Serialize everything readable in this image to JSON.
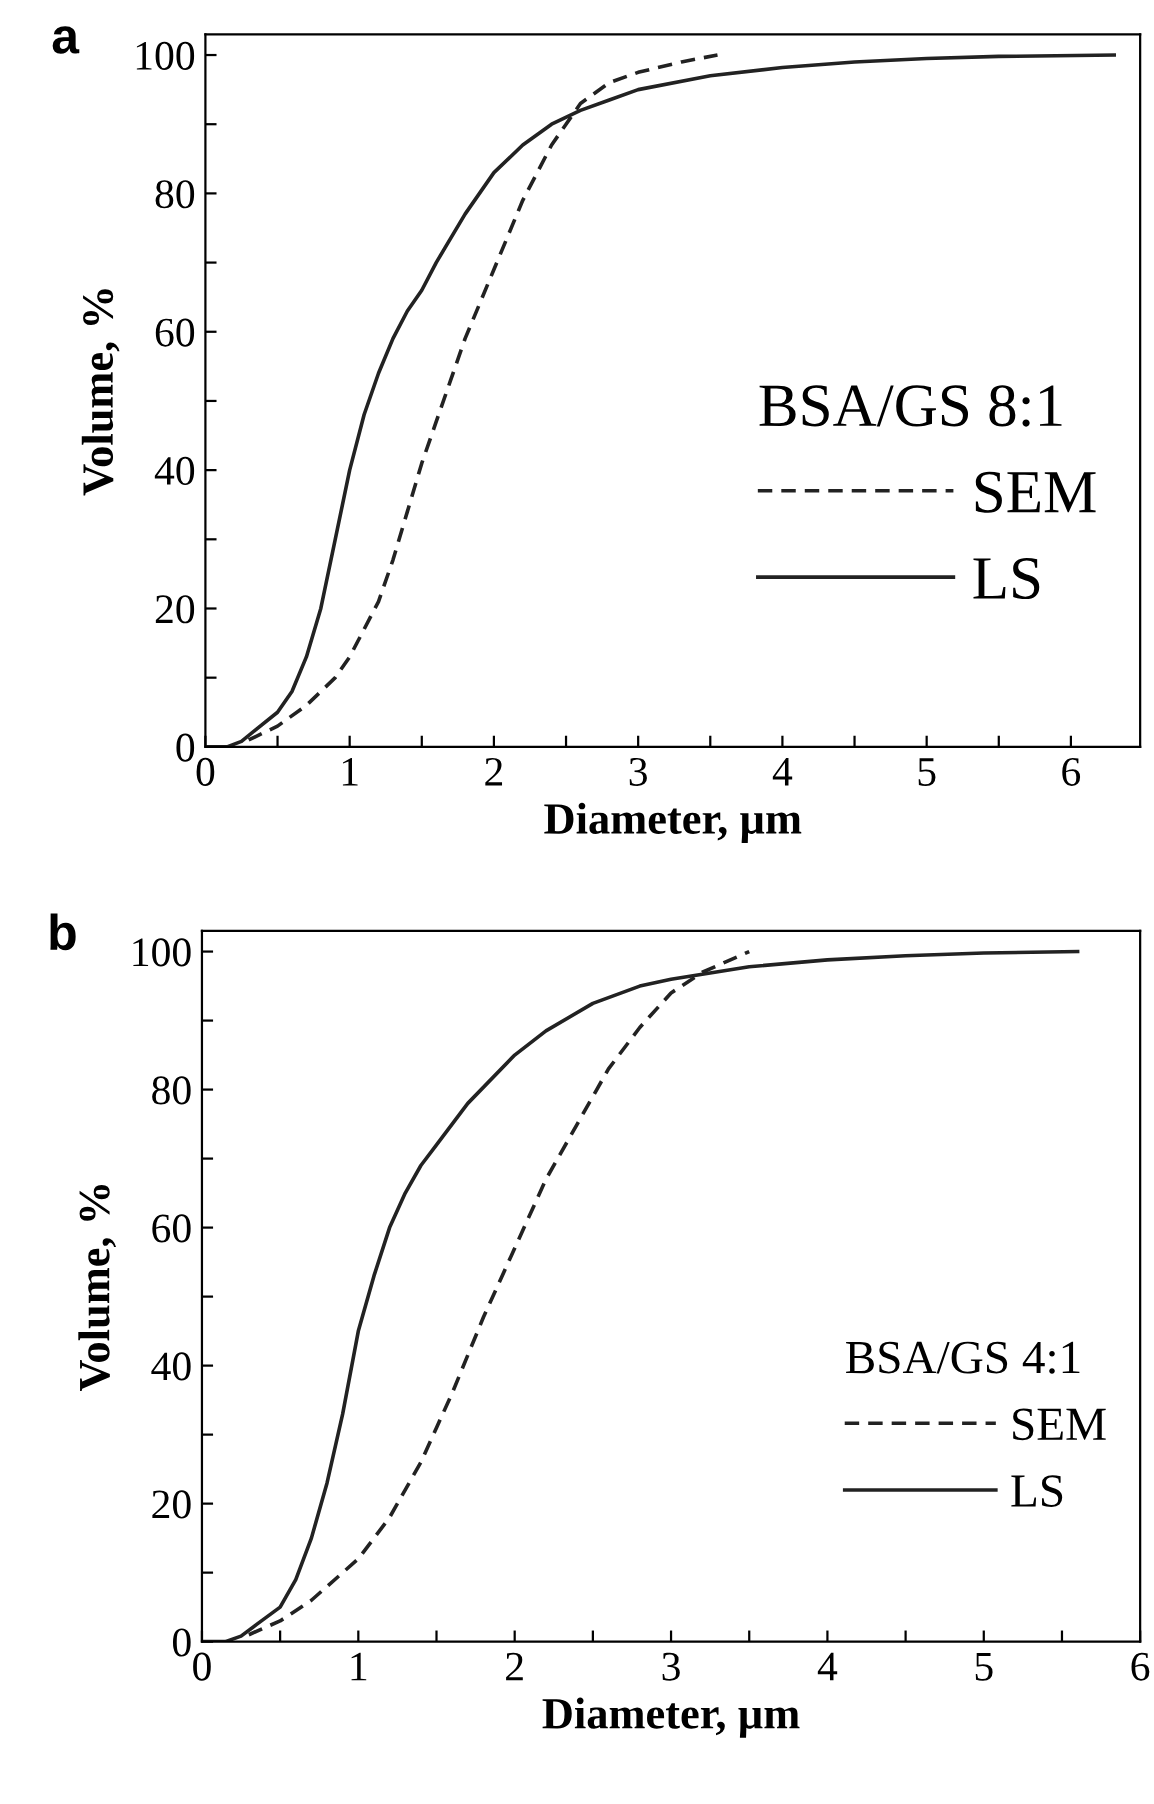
{
  "chart_data": [
    {
      "type": "line",
      "title": "a",
      "xlabel": "Diameter, µm",
      "ylabel": "Volume, %",
      "legend_title": "BSA/GS 8:1",
      "legend": "right",
      "xlim": [
        0,
        6.48
      ],
      "ylim": [
        0,
        103
      ],
      "xticks": [
        0,
        {
          "value": 0.5,
          "label": null
        },
        1,
        {
          "value": 1.5,
          "label": null
        },
        2,
        {
          "value": 2.5,
          "label": null
        },
        3,
        {
          "value": 3.5,
          "label": null
        },
        4,
        {
          "value": 4.5,
          "label": null
        },
        5,
        {
          "value": 5.5,
          "label": null
        },
        6
      ],
      "yticks": [
        0,
        {
          "value": 10,
          "label": null
        },
        20,
        {
          "value": 30,
          "label": null
        },
        40,
        {
          "value": 50,
          "label": null
        },
        60,
        {
          "value": 70,
          "label": null
        },
        80,
        {
          "value": 90,
          "label": null
        },
        100
      ],
      "series": [
        {
          "name": "SEM",
          "color": "#222222",
          "line_style": "dashed",
          "x": [
            0.3,
            0.5,
            0.7,
            0.9,
            1.0,
            1.1,
            1.2,
            1.3,
            1.4,
            1.5,
            1.6,
            1.7,
            1.8,
            1.9,
            2.0,
            2.2,
            2.4,
            2.5,
            2.6,
            2.8,
            3.0,
            3.3,
            3.55
          ],
          "values": [
            1,
            3,
            6,
            10,
            13,
            17,
            21,
            27,
            34,
            41,
            47,
            53,
            59,
            64,
            69,
            79,
            87,
            90,
            93,
            96,
            97.5,
            99,
            100
          ]
        },
        {
          "name": "LS",
          "color": "#222222",
          "line_style": "solid",
          "x": [
            0,
            0.15,
            0.25,
            0.35,
            0.5,
            0.6,
            0.7,
            0.8,
            0.9,
            1.0,
            1.1,
            1.2,
            1.3,
            1.4,
            1.5,
            1.6,
            1.8,
            2.0,
            2.2,
            2.4,
            2.6,
            2.8,
            3.0,
            3.5,
            4,
            4.5,
            5,
            5.5,
            6.3
          ],
          "values": [
            0,
            0,
            0.8,
            2.5,
            5,
            8,
            13,
            20,
            30,
            40,
            48,
            54,
            59,
            63,
            66,
            70,
            77,
            83,
            87,
            90,
            92,
            93.5,
            95,
            97,
            98.2,
            99,
            99.5,
            99.8,
            100
          ]
        }
      ]
    },
    {
      "type": "line",
      "title": "b",
      "xlabel": "Diameter, µm",
      "ylabel": "Volume, %",
      "legend_title": "BSA/GS 4:1",
      "legend": "right",
      "xlim": [
        0,
        6
      ],
      "ylim": [
        0,
        103
      ],
      "xticks": [
        0,
        {
          "value": 0.5,
          "label": null
        },
        1,
        {
          "value": 1.5,
          "label": null
        },
        2,
        {
          "value": 2.5,
          "label": null
        },
        3,
        {
          "value": 3.5,
          "label": null
        },
        4,
        {
          "value": 4.5,
          "label": null
        },
        5,
        {
          "value": 5.5,
          "label": null
        },
        6
      ],
      "yticks": [
        0,
        {
          "value": 10,
          "label": null
        },
        20,
        {
          "value": 30,
          "label": null
        },
        40,
        {
          "value": 50,
          "label": null
        },
        60,
        {
          "value": 70,
          "label": null
        },
        80,
        {
          "value": 90,
          "label": null
        },
        100
      ],
      "series": [
        {
          "name": "SEM",
          "color": "#222222",
          "line_style": "dashed",
          "x": [
            0.3,
            0.5,
            0.7,
            0.9,
            1.0,
            1.2,
            1.4,
            1.5,
            1.6,
            1.8,
            2.0,
            2.2,
            2.4,
            2.6,
            2.8,
            3.0,
            3.2,
            3.5
          ],
          "values": [
            1,
            3,
            6,
            10,
            12,
            18,
            26,
            31,
            36,
            47,
            57,
            67,
            75,
            83,
            89,
            94,
            97,
            100
          ]
        },
        {
          "name": "LS",
          "color": "#222222",
          "line_style": "solid",
          "x": [
            0,
            0.15,
            0.25,
            0.35,
            0.5,
            0.6,
            0.7,
            0.8,
            0.9,
            1.0,
            1.1,
            1.2,
            1.3,
            1.4,
            1.5,
            1.7,
            2.0,
            2.2,
            2.5,
            2.8,
            3.0,
            3.5,
            4,
            4.5,
            5,
            5.6
          ],
          "values": [
            0,
            0,
            0.8,
            2.5,
            5,
            9,
            15,
            23,
            33,
            45,
            53,
            60,
            65,
            69,
            72,
            78,
            85,
            88.5,
            92.5,
            95,
            96,
            97.8,
            98.8,
            99.4,
            99.8,
            100
          ]
        }
      ]
    }
  ]
}
